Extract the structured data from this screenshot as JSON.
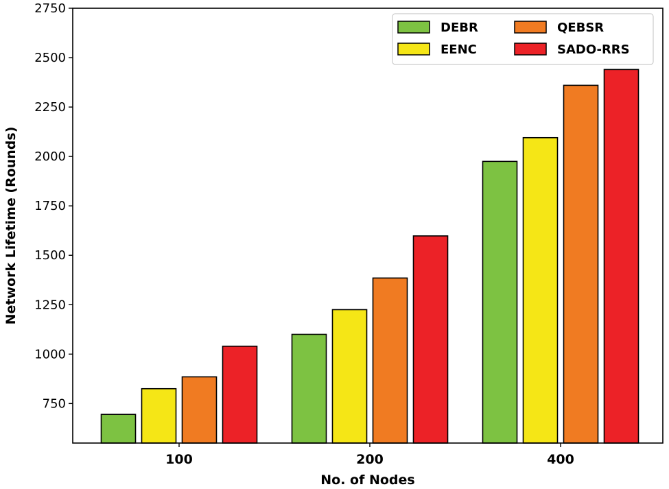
{
  "chart_data": {
    "type": "bar",
    "title": "",
    "xlabel": "No. of Nodes",
    "ylabel": "Network Lifetime (Rounds)",
    "categories": [
      "100",
      "200",
      "400"
    ],
    "series": [
      {
        "name": "DEBR",
        "color": "#7dc242",
        "values": [
          695,
          1100,
          1975
        ]
      },
      {
        "name": "EENC",
        "color": "#f5e616",
        "values": [
          825,
          1225,
          2095
        ]
      },
      {
        "name": "QEBSR",
        "color": "#f07b22",
        "values": [
          885,
          1385,
          2360
        ]
      },
      {
        "name": "SADO-RRS",
        "color": "#ec2227",
        "values": [
          1040,
          1598,
          2440
        ]
      }
    ],
    "ylim": [
      550,
      2750
    ],
    "yticks": [
      750,
      1000,
      1250,
      1500,
      1750,
      2000,
      2250,
      2500,
      2750
    ],
    "grid": false,
    "legend_position": "top-right",
    "legend_columns": 2
  }
}
